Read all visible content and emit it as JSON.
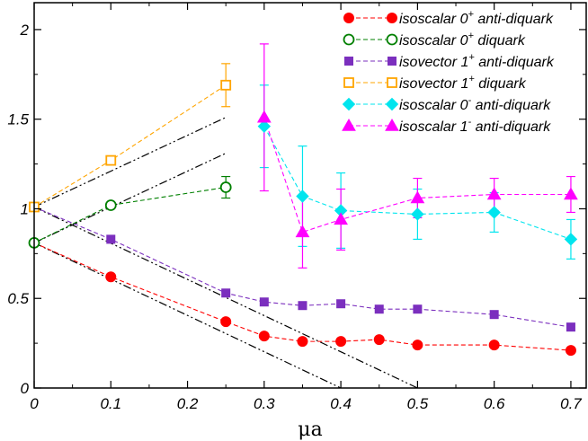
{
  "chart_data": {
    "type": "scatter",
    "xlabel": "μa",
    "ylabel": "",
    "xlim": [
      0,
      0.72
    ],
    "ylim": [
      0,
      2.15
    ],
    "x_ticks": [
      0,
      0.1,
      0.2,
      0.3,
      0.4,
      0.5,
      0.6,
      0.7
    ],
    "x_tick_labels": [
      "0",
      "0.1",
      "0.2",
      "0.3",
      "0.4",
      "0.5",
      "0.6",
      "0.7"
    ],
    "y_ticks": [
      0,
      0.5,
      1,
      1.5,
      2
    ],
    "y_tick_labels": [
      "0",
      "0.5",
      "1",
      "1.5",
      "2"
    ],
    "grid": false,
    "legend_position": "top-right",
    "series": [
      {
        "name": "isoscalar 0+ anti-diquark",
        "label_base": "isoscalar 0",
        "label_sup": "+",
        "label_tail": " anti-diquark",
        "color": "#ff0000",
        "marker": "circle",
        "filled": true,
        "line": "dashed",
        "x": [
          0,
          0.1,
          0.25,
          0.3,
          0.35,
          0.4,
          0.45,
          0.5,
          0.6,
          0.7
        ],
        "y": [
          0.81,
          0.62,
          0.37,
          0.29,
          0.26,
          0.26,
          0.27,
          0.24,
          0.24,
          0.21
        ],
        "err": [
          0,
          0,
          0,
          0,
          0,
          0,
          0,
          0,
          0,
          0
        ]
      },
      {
        "name": "isoscalar 0+ diquark",
        "label_base": "isoscalar 0",
        "label_sup": "+",
        "label_tail": " diquark",
        "color": "#008000",
        "marker": "circle",
        "filled": false,
        "line": "dashed",
        "x": [
          0,
          0.1,
          0.25
        ],
        "y": [
          0.81,
          1.02,
          1.12
        ],
        "err": [
          0,
          0,
          0.06
        ]
      },
      {
        "name": "isovector 1+ anti-diquark",
        "label_base": "isovector 1",
        "label_sup": "+",
        "label_tail": " anti-diquark",
        "color": "#7b2fbe",
        "marker": "square",
        "filled": true,
        "line": "dashed",
        "x": [
          0,
          0.1,
          0.25,
          0.3,
          0.35,
          0.4,
          0.45,
          0.5,
          0.6,
          0.7
        ],
        "y": [
          1.01,
          0.83,
          0.53,
          0.48,
          0.46,
          0.47,
          0.44,
          0.44,
          0.41,
          0.34
        ],
        "err": [
          0,
          0,
          0,
          0,
          0,
          0,
          0,
          0,
          0,
          0
        ]
      },
      {
        "name": "isovector 1+ diquark",
        "label_base": "isovector 1",
        "label_sup": "+",
        "label_tail": " diquark",
        "color": "#ffa500",
        "marker": "square",
        "filled": false,
        "line": "dashed",
        "x": [
          0,
          0.1,
          0.25
        ],
        "y": [
          1.01,
          1.27,
          1.69
        ],
        "err": [
          0,
          0,
          0.12
        ]
      },
      {
        "name": "isoscalar 0- anti-diquark",
        "label_base": "isoscalar 0",
        "label_sup": "-",
        "label_tail": " anti-diquark",
        "color": "#00e5ee",
        "marker": "diamond",
        "filled": true,
        "line": "dashed",
        "x": [
          0.3,
          0.35,
          0.4,
          0.5,
          0.6,
          0.7
        ],
        "y": [
          1.46,
          1.07,
          0.99,
          0.97,
          0.98,
          0.83
        ],
        "err": [
          0.23,
          0.28,
          0.21,
          0.14,
          0.11,
          0.11
        ]
      },
      {
        "name": "isoscalar 1- anti-diquark",
        "label_base": "isoscalar 1",
        "label_sup": "-",
        "label_tail": " anti-diquark",
        "color": "#ff00ff",
        "marker": "triangle",
        "filled": true,
        "line": "dashed",
        "x": [
          0.3,
          0.35,
          0.4,
          0.5,
          0.6,
          0.7
        ],
        "y": [
          1.51,
          0.87,
          0.94,
          1.06,
          1.08,
          1.08
        ],
        "err": [
          0.41,
          0.2,
          0.17,
          0.11,
          0.09,
          0.1
        ]
      }
    ],
    "reference_lines": [
      {
        "from": [
          0,
          0.81
        ],
        "to": [
          0.4,
          0
        ]
      },
      {
        "from": [
          0,
          1.01
        ],
        "to": [
          0.5,
          0
        ]
      },
      {
        "from": [
          0,
          0.81
        ],
        "to": [
          0.25,
          1.31
        ]
      },
      {
        "from": [
          0,
          1.01
        ],
        "to": [
          0.25,
          1.51
        ]
      }
    ]
  }
}
